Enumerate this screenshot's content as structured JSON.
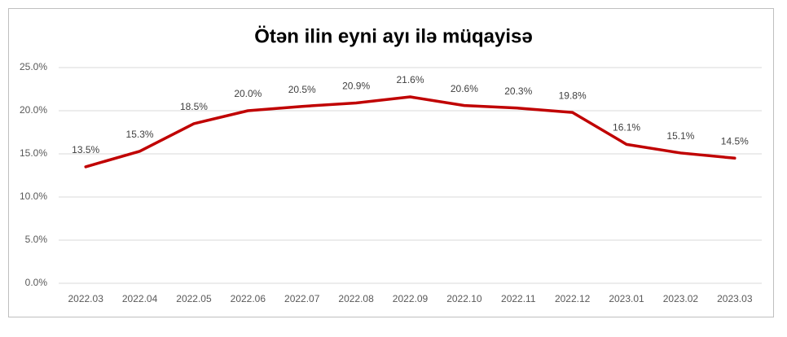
{
  "chart_data": {
    "type": "line",
    "title": "Ötən ilin eyni ayı ilə müqayisə",
    "categories": [
      "2022.03",
      "2022.04",
      "2022.05",
      "2022.06",
      "2022.07",
      "2022.08",
      "2022.09",
      "2022.10",
      "2022.11",
      "2022.12",
      "2023.01",
      "2023.02",
      "2023.03"
    ],
    "values": [
      13.5,
      15.3,
      18.5,
      20.0,
      20.5,
      20.9,
      21.6,
      20.6,
      20.3,
      19.8,
      16.1,
      15.1,
      14.5
    ],
    "value_labels": [
      "13.5%",
      "15.3%",
      "18.5%",
      "20.0%",
      "20.5%",
      "20.9%",
      "21.6%",
      "20.6%",
      "20.3%",
      "19.8%",
      "16.1%",
      "15.1%",
      "14.5%"
    ],
    "color": "#c00000",
    "ylim": [
      0,
      25
    ],
    "yticks": [
      {
        "value": 0,
        "label": "0.0%"
      },
      {
        "value": 5,
        "label": "5.0%"
      },
      {
        "value": 10,
        "label": "10.0%"
      },
      {
        "value": 15,
        "label": "15.0%"
      },
      {
        "value": 20,
        "label": "20.0%"
      },
      {
        "value": 25,
        "label": "25.0%"
      }
    ],
    "grid": true
  }
}
